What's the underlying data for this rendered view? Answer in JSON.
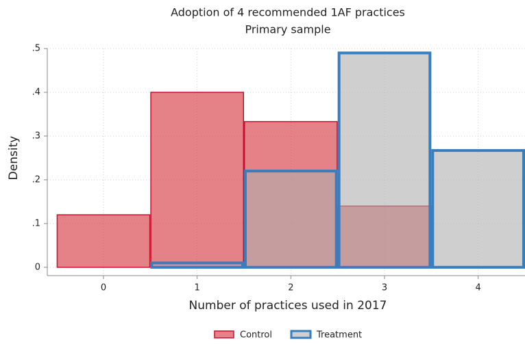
{
  "chart_data": {
    "type": "histogram",
    "title": "Adoption of 4 recommended 1AF practices",
    "subtitle": "Primary sample",
    "x_label": "Number of practices used in 2017",
    "y_label": "Density",
    "bins": [
      -0.5,
      0.5,
      1.5,
      2.5,
      3.5,
      4.5
    ],
    "series": [
      {
        "name": "Control",
        "color": "#c8102e",
        "fill": "rgba(210,40,50,0.58)",
        "stroke_width": 1.5,
        "values": [
          0.12,
          0.4,
          0.333,
          0.14,
          0
        ]
      },
      {
        "name": "Treatment",
        "color": "#3a7dbd",
        "fill": "rgba(175,175,175,0.6)",
        "stroke_width": 4,
        "values": [
          0,
          0.01,
          0.22,
          0.49,
          0.267
        ]
      }
    ],
    "xlim": [
      -0.6,
      4.5
    ],
    "ylim": [
      -0.019,
      0.5
    ],
    "xticks": [
      0,
      1,
      2,
      3,
      4
    ],
    "yticks": [
      0,
      {
        "value": 0.1,
        "label": ".1"
      },
      {
        "value": 0.2,
        "label": ".2"
      },
      {
        "value": 0.3,
        "label": ".3"
      },
      {
        "value": 0.4,
        "label": ".4"
      },
      {
        "value": 0.5,
        "label": ".5"
      }
    ],
    "grid": true,
    "legend": "bottom"
  }
}
